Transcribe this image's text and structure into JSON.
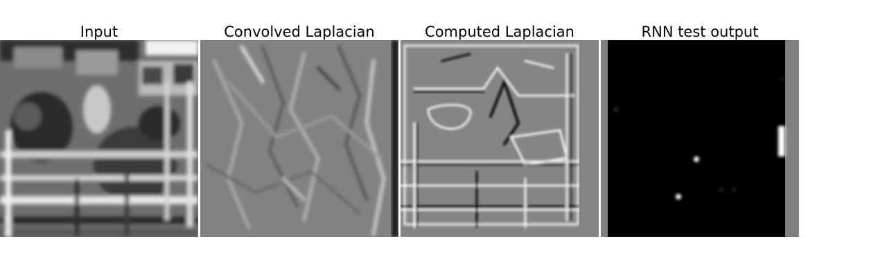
{
  "figure": {
    "panels": [
      {
        "id": "input",
        "title": "Input"
      },
      {
        "id": "convolved-laplacian",
        "title": "Convolved Laplacian"
      },
      {
        "id": "computed-laplacian",
        "title": "Computed Laplacian"
      },
      {
        "id": "rnn-test-output",
        "title": "RNN test output"
      }
    ]
  },
  "colors": {
    "background": "#ffffff",
    "mid_gray": "#808080",
    "black": "#000000",
    "white": "#ffffff"
  }
}
